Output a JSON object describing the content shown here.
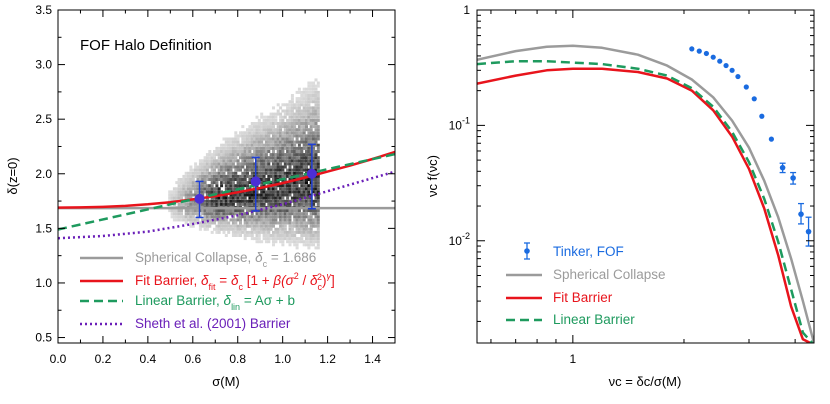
{
  "chart_data": [
    {
      "type": "scatter",
      "title": "FOF Halo Definition",
      "xlabel": "σ(M)",
      "ylabel": "δ(z=0)",
      "xlim": [
        0.0,
        1.5
      ],
      "ylim": [
        0.45,
        3.5
      ],
      "xticks": [
        "0.0",
        "0.2",
        "0.4",
        "0.6",
        "0.8",
        "1.0",
        "1.2",
        "1.4"
      ],
      "yticks": [
        "0.5",
        "1.0",
        "1.5",
        "2.0",
        "2.5",
        "3.0",
        "3.5"
      ],
      "legend_placement": "bottom-left",
      "background": "grayscale 2D histogram of halo δ vs σ(M), spanning σ ≈ 0.5–1.15, δ ≈ 1.3–3.1",
      "points": {
        "name": "",
        "x": [
          0.63,
          0.88,
          1.13
        ],
        "y": [
          1.77,
          1.93,
          2.0
        ],
        "err_low": [
          0.17,
          0.27,
          0.32
        ],
        "err_high": [
          0.16,
          0.22,
          0.27
        ],
        "color": "#4b2fd6",
        "err_color": "#1f3fd6"
      },
      "series": [
        {
          "name": "Spherical Collapse, δc = 1.686",
          "legend_label": "Spherical Collapse, ",
          "legend_math": "δ",
          "legend_sub": "c",
          "legend_tail": " = 1.686",
          "style": "solid",
          "color": "#9b9b9b",
          "x": [
            0.0,
            1.5
          ],
          "y": [
            1.686,
            1.686
          ]
        },
        {
          "name": "Fit Barrier",
          "legend_label": "Fit Barrier, ",
          "legend_formula": "δfit = δc [1 + β(σ² / δc²)γ]",
          "style": "solid",
          "color": "#e8141c",
          "x": [
            0.0,
            0.1,
            0.2,
            0.3,
            0.4,
            0.5,
            0.6,
            0.7,
            0.8,
            0.9,
            1.0,
            1.1,
            1.2,
            1.3,
            1.4,
            1.5
          ],
          "y": [
            1.69,
            1.692,
            1.697,
            1.706,
            1.72,
            1.74,
            1.765,
            1.795,
            1.83,
            1.87,
            1.915,
            1.965,
            2.02,
            2.075,
            2.135,
            2.2
          ]
        },
        {
          "name": "Linear Barrier",
          "legend_label": "Linear Barrier, ",
          "legend_formula": "δlin = Aσ + b",
          "style": "dashed",
          "color": "#1e9a5e",
          "x": [
            0.0,
            1.5
          ],
          "y": [
            1.49,
            2.18
          ]
        },
        {
          "name": "Sheth et al. (2001) Barrier",
          "legend_label": "Sheth et al. (2001) Barrier",
          "style": "dotted",
          "color": "#6a1fb8",
          "x": [
            0.0,
            0.2,
            0.4,
            0.6,
            0.8,
            1.0,
            1.2,
            1.4,
            1.5
          ],
          "y": [
            1.41,
            1.43,
            1.47,
            1.54,
            1.62,
            1.72,
            1.84,
            1.96,
            2.02
          ]
        }
      ]
    },
    {
      "type": "line",
      "title": "",
      "xlabel": "νc = δc/σ(M)",
      "ylabel": "νc f(νc)",
      "xscale": "log",
      "yscale": "log",
      "xlim": [
        0.55,
        4.5
      ],
      "ylim": [
        0.0013,
        1.0
      ],
      "xticks": [
        "1"
      ],
      "yticks": [
        "10-2",
        "10-1",
        "1"
      ],
      "legend_placement": "bottom-left",
      "points": {
        "name": "Tinker, FOF",
        "color": "#1a6be0",
        "x": [
          2.1,
          2.2,
          2.3,
          2.4,
          2.5,
          2.6,
          2.7,
          2.8,
          2.95,
          3.1,
          3.25,
          3.45,
          3.7,
          3.95
        ],
        "y": [
          0.46,
          0.44,
          0.42,
          0.39,
          0.36,
          0.33,
          0.3,
          0.265,
          0.215,
          0.17,
          0.12,
          0.076,
          0.043,
          0.035
        ],
        "err_x": [
          3.7,
          3.95,
          4.15,
          4.35
        ],
        "err_y": [
          0.043,
          0.035,
          0.017,
          0.012
        ],
        "err_lo": [
          0.039,
          0.031,
          0.014,
          0.009
        ],
        "err_hi": [
          0.047,
          0.039,
          0.021,
          0.016
        ]
      },
      "series": [
        {
          "name": "Spherical Collapse",
          "style": "solid",
          "color": "#9b9b9b",
          "x": [
            0.55,
            0.7,
            0.85,
            1.0,
            1.2,
            1.5,
            1.8,
            2.1,
            2.4,
            2.7,
            3.0,
            3.3,
            3.6,
            3.9,
            4.2,
            4.5
          ],
          "y": [
            0.37,
            0.44,
            0.48,
            0.49,
            0.47,
            0.41,
            0.33,
            0.25,
            0.175,
            0.11,
            0.064,
            0.033,
            0.016,
            0.007,
            0.003,
            0.0013
          ]
        },
        {
          "name": "Fit Barrier",
          "style": "solid",
          "color": "#e8141c",
          "x": [
            0.55,
            0.7,
            0.85,
            1.0,
            1.2,
            1.5,
            1.8,
            2.1,
            2.4,
            2.7,
            3.0,
            3.3,
            3.6,
            3.9,
            4.2,
            4.4
          ],
          "y": [
            0.23,
            0.27,
            0.3,
            0.31,
            0.31,
            0.29,
            0.255,
            0.2,
            0.135,
            0.08,
            0.042,
            0.019,
            0.0075,
            0.0027,
            0.0014,
            0.0013
          ]
        },
        {
          "name": "Linear Barrier",
          "style": "dashed",
          "color": "#1e9a5e",
          "x": [
            0.55,
            0.7,
            0.85,
            1.0,
            1.2,
            1.5,
            1.8,
            2.1,
            2.4,
            2.7,
            3.0,
            3.3,
            3.6,
            3.9,
            4.2,
            4.45
          ],
          "y": [
            0.34,
            0.36,
            0.36,
            0.35,
            0.34,
            0.31,
            0.27,
            0.21,
            0.145,
            0.088,
            0.048,
            0.023,
            0.0098,
            0.0038,
            0.0016,
            0.0013
          ]
        }
      ]
    }
  ]
}
